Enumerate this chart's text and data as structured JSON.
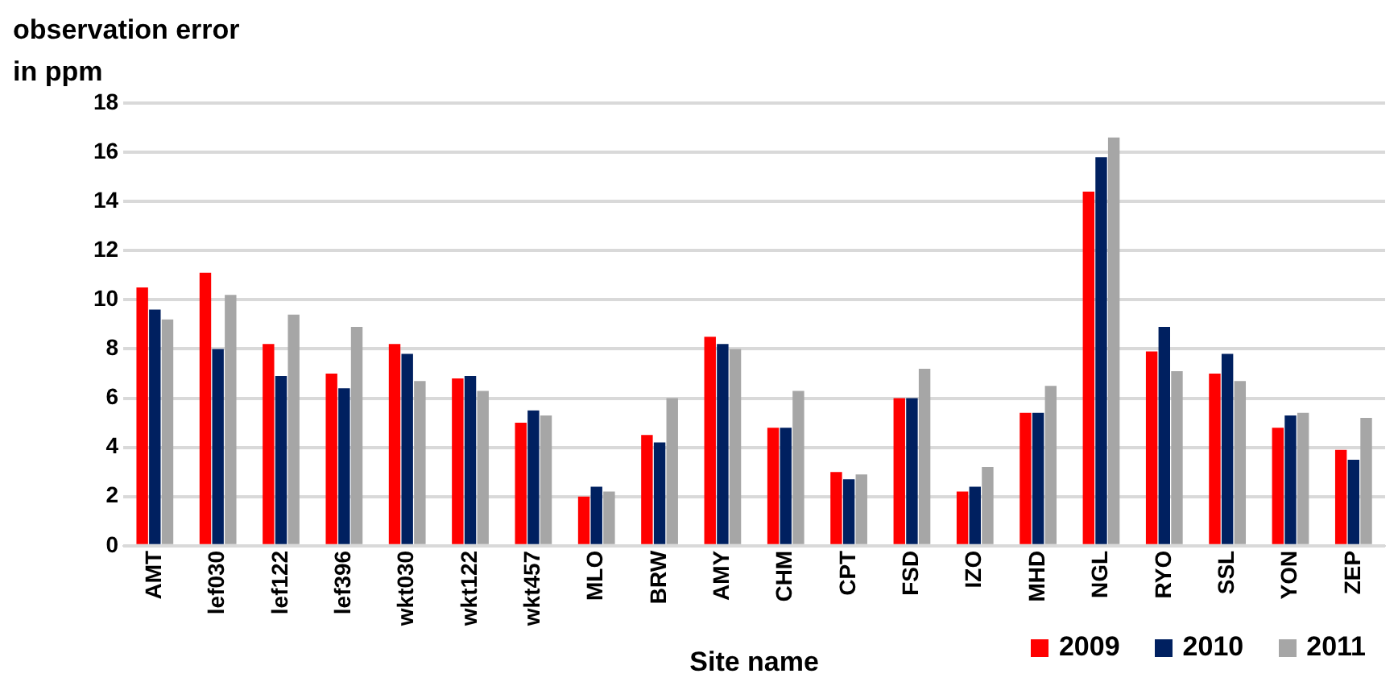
{
  "chart_data": {
    "type": "bar",
    "ylabel": "observation error in ppm",
    "xlabel": "Site name",
    "categories": [
      "AMT",
      "lef030",
      "lef122",
      "lef396",
      "wkt030",
      "wkt122",
      "wkt457",
      "MLO",
      "BRW",
      "AMY",
      "CHM",
      "CPT",
      "FSD",
      "IZO",
      "MHD",
      "NGL",
      "RYO",
      "SSL",
      "YON",
      "ZEP"
    ],
    "series": [
      {
        "name": "2009",
        "color": "#ff0000",
        "values": [
          10.5,
          11.1,
          8.2,
          7.0,
          8.2,
          6.8,
          5.0,
          2.0,
          4.5,
          8.5,
          4.8,
          3.0,
          6.0,
          2.2,
          5.4,
          14.4,
          7.9,
          7.0,
          4.8,
          3.9
        ]
      },
      {
        "name": "2010",
        "color": "#002060",
        "values": [
          9.6,
          8.0,
          6.9,
          6.4,
          7.8,
          6.9,
          5.5,
          2.4,
          4.2,
          8.2,
          4.8,
          2.7,
          6.0,
          2.4,
          5.4,
          15.8,
          8.9,
          7.8,
          5.3,
          3.5
        ]
      },
      {
        "name": "2011",
        "color": "#a6a6a6",
        "values": [
          9.2,
          10.2,
          9.4,
          8.9,
          6.7,
          6.3,
          5.3,
          2.2,
          6.0,
          8.0,
          6.3,
          2.9,
          7.2,
          3.2,
          6.5,
          16.6,
          7.1,
          6.7,
          5.4,
          5.2
        ]
      }
    ],
    "ylim": [
      0,
      18
    ],
    "yticks": [
      0,
      2,
      4,
      6,
      8,
      10,
      12,
      14,
      16,
      18
    ],
    "grid": "y",
    "legend": "bottom right"
  }
}
